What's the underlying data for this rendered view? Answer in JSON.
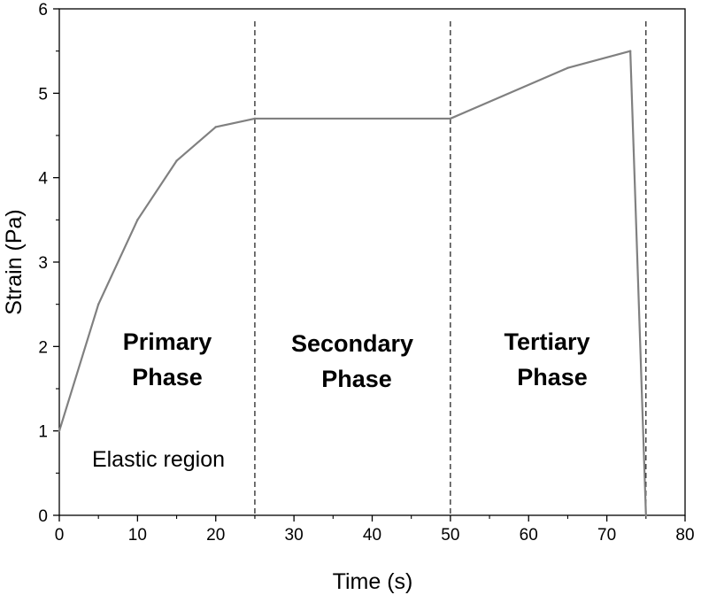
{
  "chart_data": {
    "type": "line",
    "title": "",
    "xlabel": "Time (s)",
    "ylabel": "Strain (Pa)",
    "xlim": [
      0,
      80
    ],
    "ylim": [
      0,
      6
    ],
    "x_ticks": [
      "0",
      "10",
      "20",
      "30",
      "40",
      "50",
      "60",
      "70",
      "80"
    ],
    "y_ticks": [
      "0",
      "1",
      "2",
      "3",
      "4",
      "5",
      "6"
    ],
    "grid": false,
    "legend": "none",
    "series": [
      {
        "color": "#808080",
        "x": [
          0,
          5,
          10,
          15,
          20,
          25,
          50,
          65,
          73,
          75
        ],
        "y": [
          1.0,
          2.5,
          3.5,
          4.2,
          4.6,
          4.7,
          4.7,
          5.3,
          5.5,
          0.0
        ]
      }
    ],
    "phase_boundaries": [
      25,
      50,
      75
    ],
    "annotations": {
      "primary_line1": "Primary",
      "primary_line2": "Phase",
      "secondary_line1": "Secondary",
      "secondary_line2": "Phase",
      "tertiary_line1": "Tertiary",
      "tertiary_line2": "Phase",
      "elastic": "Elastic region"
    }
  }
}
